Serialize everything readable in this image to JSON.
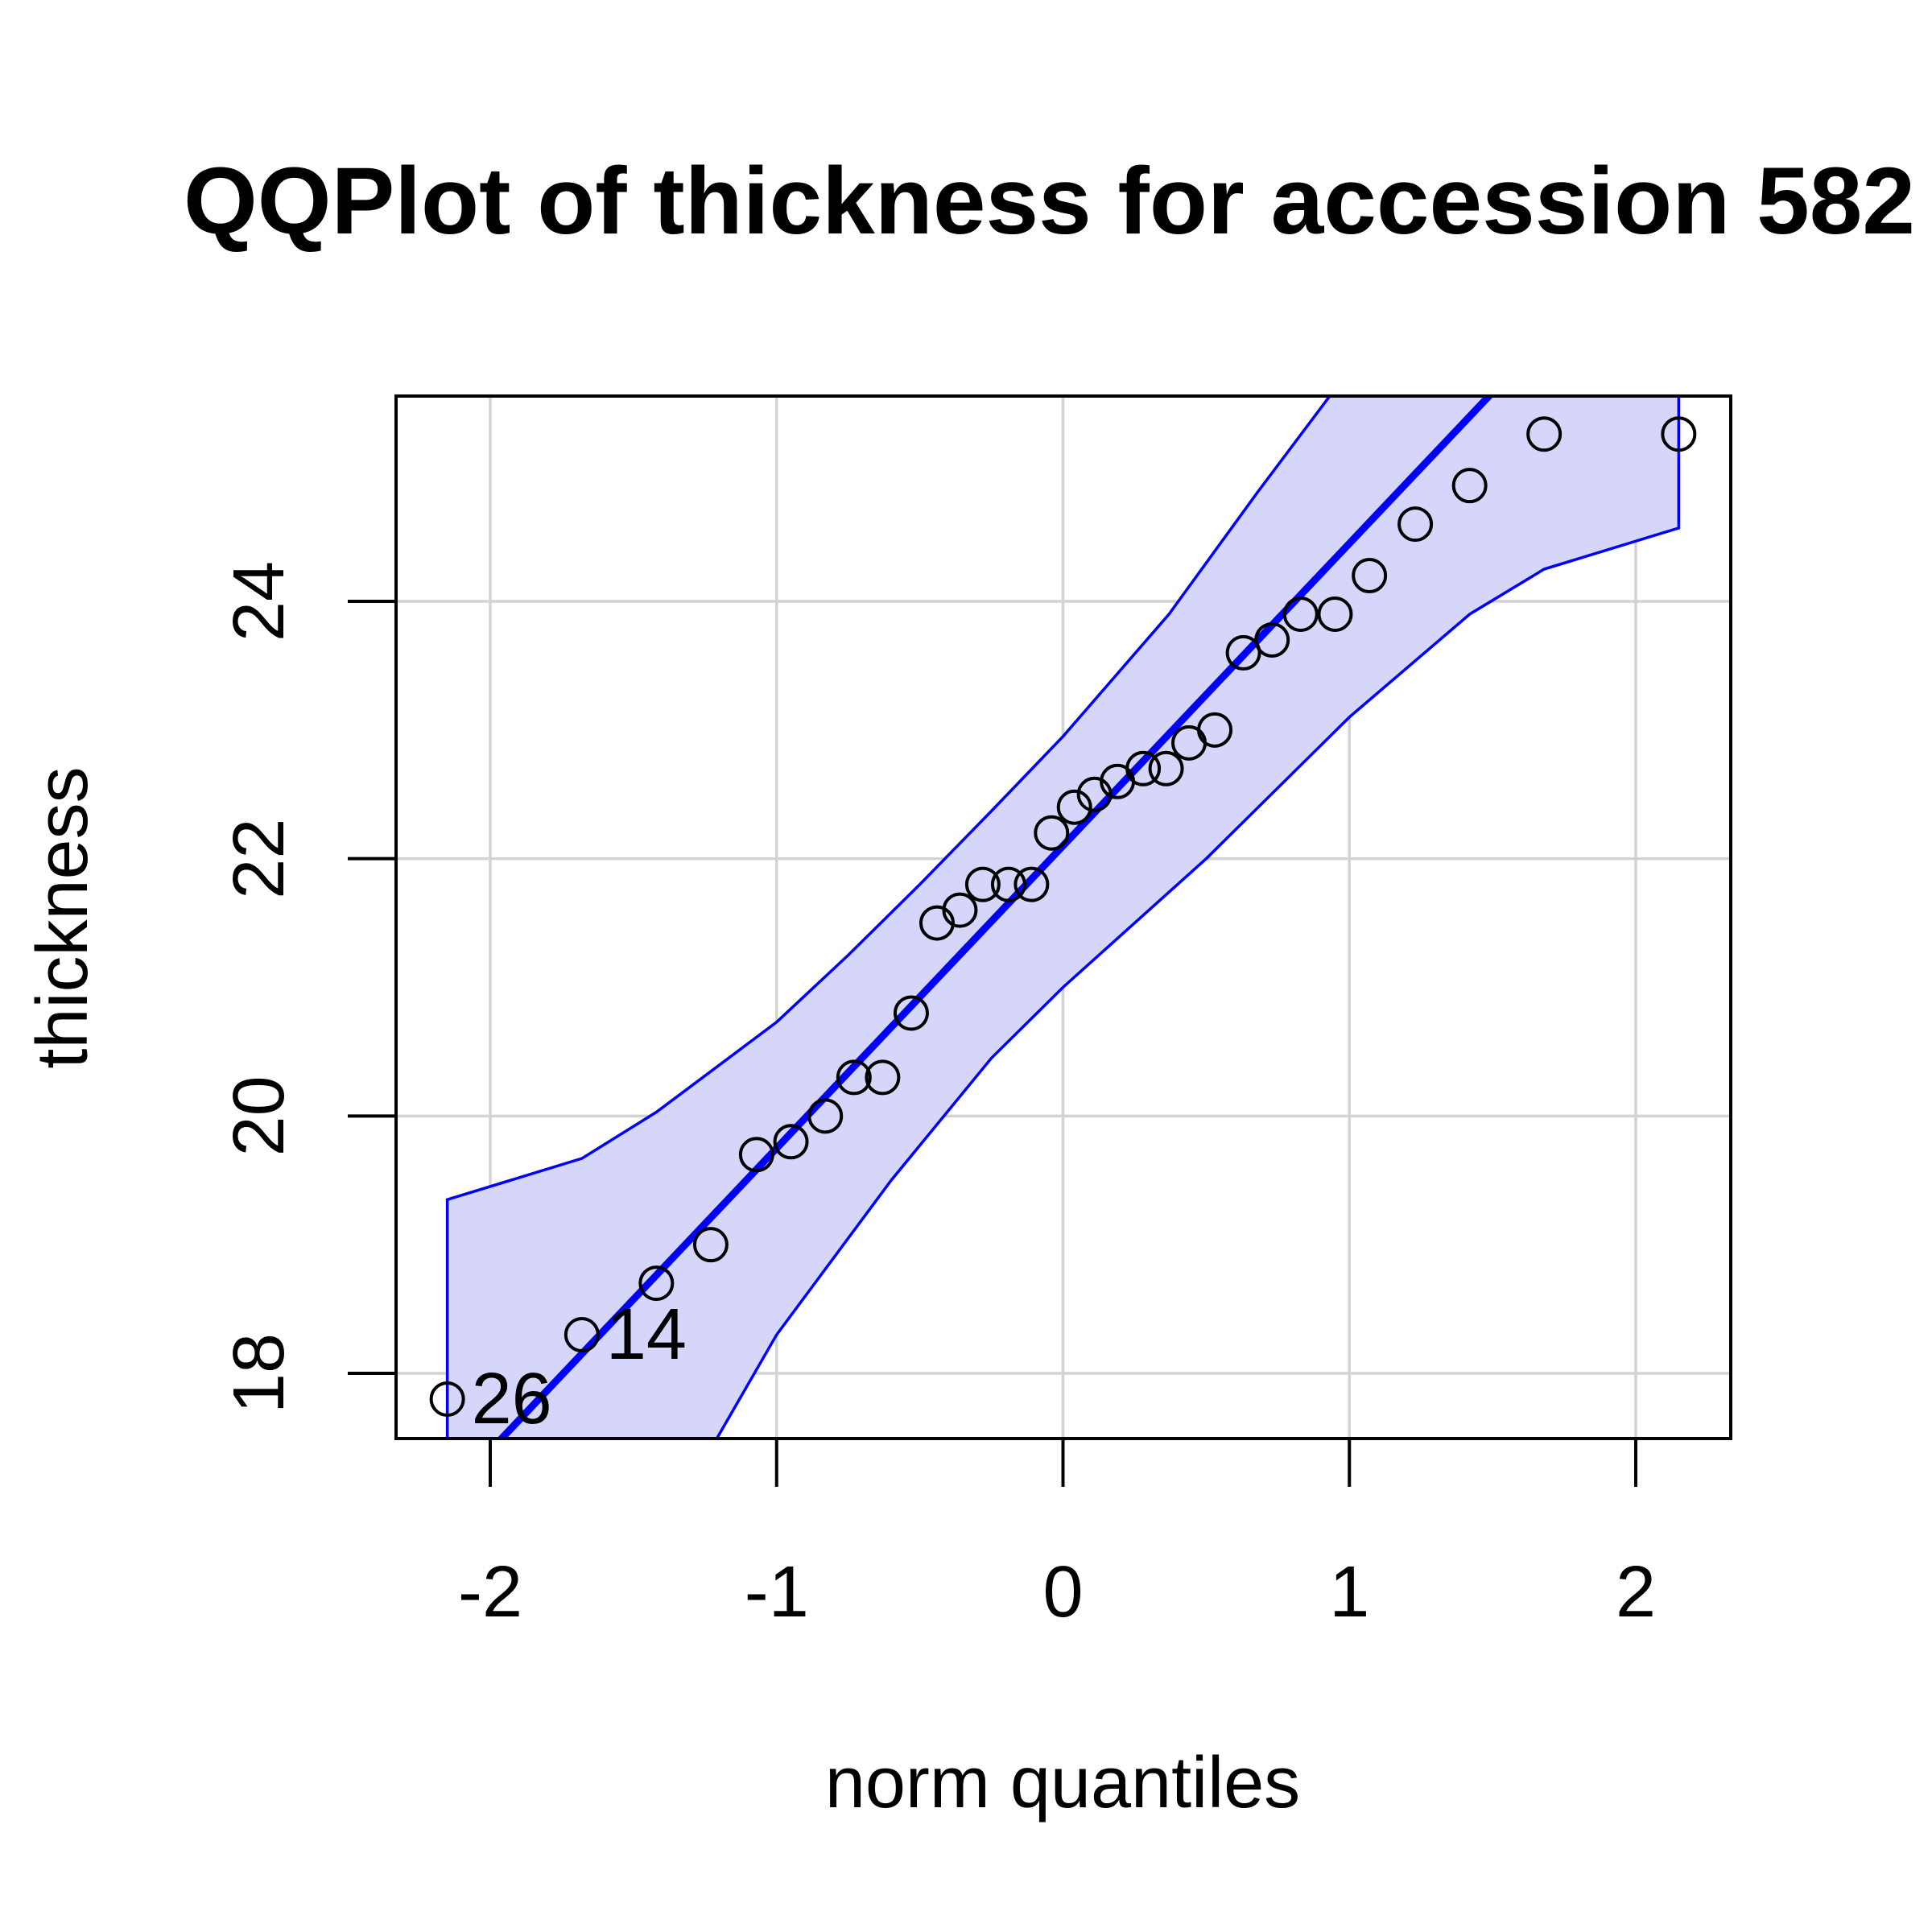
{
  "chart_data": {
    "type": "scatter",
    "title": "QQPlot of thickness for accession 582",
    "xlabel": "norm quantiles",
    "ylabel": "thickness",
    "xlim": [
      -2.33,
      2.33
    ],
    "ylim": [
      17.5,
      25.6
    ],
    "xticks": [
      -2,
      -1,
      0,
      1,
      2
    ],
    "yticks": [
      18,
      20,
      22,
      24
    ],
    "grid": true,
    "colors": {
      "reference_line": "#0000ff",
      "envelope_fill": "#d6d6fa",
      "envelope_line": "#0000ff",
      "points": "#000000",
      "grid": "#d3d3d3"
    },
    "points": [
      {
        "x": -2.15,
        "y": 17.8
      },
      {
        "x": -1.68,
        "y": 18.3
      },
      {
        "x": -1.42,
        "y": 18.7
      },
      {
        "x": -1.23,
        "y": 19.0
      },
      {
        "x": -1.07,
        "y": 19.7
      },
      {
        "x": -0.95,
        "y": 19.8
      },
      {
        "x": -0.83,
        "y": 20.0
      },
      {
        "x": -0.73,
        "y": 20.3
      },
      {
        "x": -0.63,
        "y": 20.3
      },
      {
        "x": -0.53,
        "y": 20.8
      },
      {
        "x": -0.44,
        "y": 21.5
      },
      {
        "x": -0.36,
        "y": 21.6
      },
      {
        "x": -0.28,
        "y": 21.8
      },
      {
        "x": -0.19,
        "y": 21.8
      },
      {
        "x": -0.11,
        "y": 21.8
      },
      {
        "x": -0.04,
        "y": 22.2
      },
      {
        "x": 0.04,
        "y": 22.4
      },
      {
        "x": 0.11,
        "y": 22.5
      },
      {
        "x": 0.19,
        "y": 22.6
      },
      {
        "x": 0.28,
        "y": 22.7
      },
      {
        "x": 0.36,
        "y": 22.7
      },
      {
        "x": 0.44,
        "y": 22.9
      },
      {
        "x": 0.53,
        "y": 23.0
      },
      {
        "x": 0.63,
        "y": 23.6
      },
      {
        "x": 0.73,
        "y": 23.7
      },
      {
        "x": 0.83,
        "y": 23.9
      },
      {
        "x": 0.95,
        "y": 23.9
      },
      {
        "x": 1.07,
        "y": 24.2
      },
      {
        "x": 1.23,
        "y": 24.6
      },
      {
        "x": 1.42,
        "y": 24.9
      },
      {
        "x": 1.68,
        "y": 25.3
      },
      {
        "x": 2.15,
        "y": 25.3
      }
    ],
    "labeled_points": [
      {
        "label": "26",
        "x": -2.15,
        "y": 17.8
      },
      {
        "label": "14",
        "x": -1.68,
        "y": 18.3
      }
    ],
    "reference_line": {
      "intercept": 22.1,
      "slope": 2.35
    },
    "envelope_upper": [
      {
        "x": -2.15,
        "y": 19.35
      },
      {
        "x": -1.68,
        "y": 19.67
      },
      {
        "x": -1.42,
        "y": 20.03
      },
      {
        "x": -1.0,
        "y": 20.73
      },
      {
        "x": -0.75,
        "y": 21.25
      },
      {
        "x": -0.5,
        "y": 21.8
      },
      {
        "x": -0.25,
        "y": 22.37
      },
      {
        "x": 0.0,
        "y": 22.95
      },
      {
        "x": 0.37,
        "y": 23.9
      },
      {
        "x": 0.68,
        "y": 24.85
      },
      {
        "x": 0.96,
        "y": 25.68
      }
    ],
    "envelope_lower": [
      {
        "x": -1.22,
        "y": 17.45
      },
      {
        "x": -1.0,
        "y": 18.3
      },
      {
        "x": -0.6,
        "y": 19.5
      },
      {
        "x": -0.25,
        "y": 20.45
      },
      {
        "x": 0.0,
        "y": 21.0
      },
      {
        "x": 0.5,
        "y": 22.0
      },
      {
        "x": 1.0,
        "y": 23.1
      },
      {
        "x": 1.42,
        "y": 23.9
      },
      {
        "x": 1.68,
        "y": 24.25
      },
      {
        "x": 2.15,
        "y": 24.57
      }
    ]
  }
}
